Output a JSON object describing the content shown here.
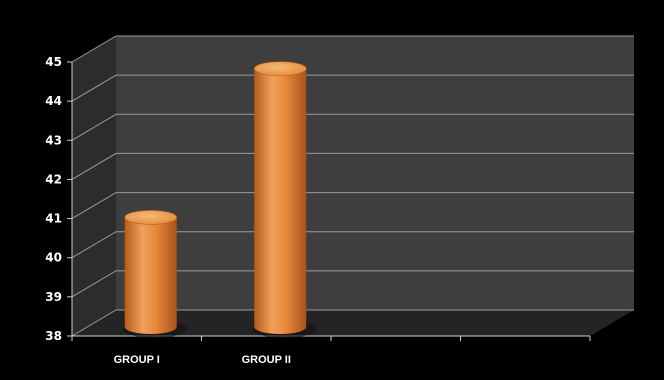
{
  "chart_data": {
    "type": "bar",
    "style": "3d-cylinder",
    "categories": [
      "GROUP I",
      "GROUP II",
      "",
      ""
    ],
    "series": [
      {
        "values": [
          40.8,
          44.6,
          null,
          null
        ]
      }
    ],
    "ylim": [
      38,
      45
    ],
    "yticks": [
      38,
      39,
      40,
      41,
      42,
      43,
      44,
      45
    ],
    "grid": true,
    "legend": "none",
    "colors": {
      "background": "#000000",
      "plot_wall": "#3e3e3e",
      "side_wall": "#2c2c2c",
      "floor": "#242424",
      "gridline": "#9a9a9a",
      "bar": "#e8893a",
      "bar_top": "#f3a862",
      "bar_shade": "#b65c1d",
      "text": "#ffffff"
    }
  }
}
